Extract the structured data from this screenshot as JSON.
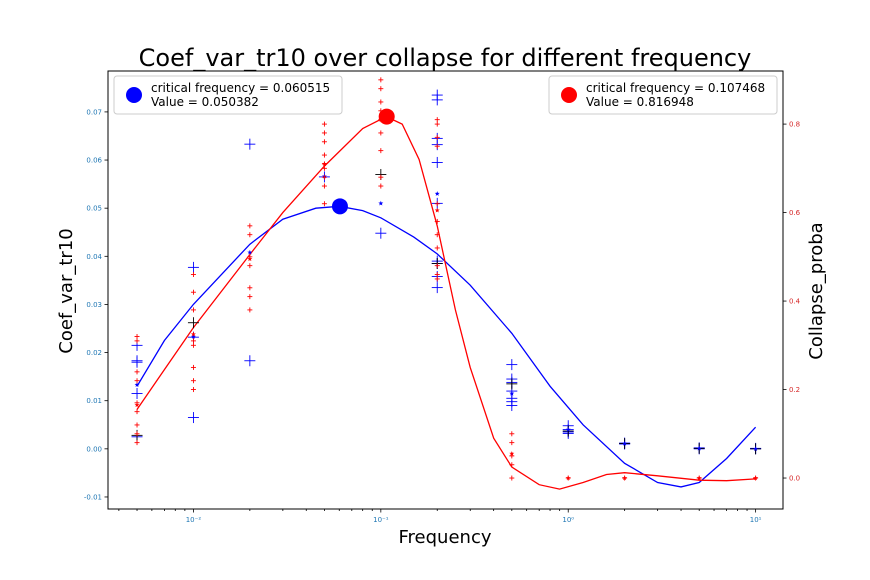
{
  "chart_data": {
    "type": "scatter",
    "title": "Coef_var_tr10 over collapse for different frequency",
    "xlabel": "Frequency",
    "ylabel_left": "Coef_var_tr10",
    "ylabel_right": "Collapse_proba",
    "x_scale": "log",
    "xlim": [
      0.0035,
      14
    ],
    "ylim_left": [
      -0.0125,
      0.0785
    ],
    "ylim_right": [
      -0.07,
      0.92
    ],
    "x_ticks": [
      {
        "value": 0.01,
        "label": "10⁻²"
      },
      {
        "value": 0.1,
        "label": "10⁻¹"
      },
      {
        "value": 1,
        "label": "10⁰"
      },
      {
        "value": 10,
        "label": "10¹"
      }
    ],
    "y_ticks_left": [
      "-0.01",
      "0.00",
      "0.01",
      "0.02",
      "0.03",
      "0.04",
      "0.05",
      "0.06",
      "0.07"
    ],
    "y_ticks_right": [
      "0.0",
      "0.2",
      "0.4",
      "0.6",
      "0.8"
    ],
    "colors": {
      "blue": "#0000ff",
      "red": "#ff0000",
      "black": "#000000"
    },
    "legends": [
      {
        "position": "upper-left",
        "color": "#0000ff",
        "line1": "critical frequency = 0.060515",
        "line2": "Value = 0.050382"
      },
      {
        "position": "upper-right",
        "color": "#ff0000",
        "line1": "critical frequency = 0.107468",
        "line2": "Value = 0.816948"
      }
    ],
    "critical_points": [
      {
        "axis": "left",
        "color": "#0000ff",
        "x": 0.060515,
        "y": 0.050382
      },
      {
        "axis": "right",
        "color": "#ff0000",
        "x": 0.107468,
        "y": 0.816948
      }
    ],
    "series": [
      {
        "axis": "left",
        "marker": "plus-large",
        "color": "#0000ff",
        "points": [
          [
            0.005,
            0.0215
          ],
          [
            0.005,
            0.0183
          ],
          [
            0.005,
            0.018
          ],
          [
            0.005,
            0.0115
          ],
          [
            0.005,
            0.0025
          ],
          [
            0.01,
            0.0377
          ],
          [
            0.01,
            0.0232
          ],
          [
            0.01,
            0.0065
          ],
          [
            0.02,
            0.0633
          ],
          [
            0.02,
            0.0183
          ],
          [
            0.05,
            0.0565
          ],
          [
            0.1,
            0.0448
          ],
          [
            0.2,
            0.0735
          ],
          [
            0.2,
            0.0725
          ],
          [
            0.2,
            0.0645
          ],
          [
            0.2,
            0.0632
          ],
          [
            0.2,
            0.0595
          ],
          [
            0.2,
            0.051
          ],
          [
            0.2,
            0.039
          ],
          [
            0.2,
            0.0385
          ],
          [
            0.2,
            0.0358
          ],
          [
            0.2,
            0.0335
          ],
          [
            0.5,
            0.0175
          ],
          [
            0.5,
            0.0145
          ],
          [
            0.5,
            0.0138
          ],
          [
            0.5,
            0.012
          ],
          [
            0.5,
            0.0105
          ],
          [
            0.5,
            0.0098
          ],
          [
            0.5,
            0.009
          ],
          [
            1,
            0.0048
          ],
          [
            1,
            0.004
          ],
          [
            1,
            0.0035
          ],
          [
            1,
            0.0032
          ],
          [
            2,
            0.0012
          ],
          [
            2,
            0.001
          ],
          [
            5,
            0.0002
          ],
          [
            5,
            0.0
          ],
          [
            10,
            0.0001
          ],
          [
            10,
            0.0
          ]
        ]
      },
      {
        "axis": "left",
        "marker": "plus-large",
        "color": "#000000",
        "points": [
          [
            0.005,
            0.0028
          ],
          [
            0.01,
            0.0262
          ],
          [
            0.1,
            0.057
          ],
          [
            0.2,
            0.0385
          ],
          [
            0.5,
            0.0135
          ],
          [
            1,
            0.0037
          ],
          [
            2,
            0.0011
          ],
          [
            5,
            0.0001
          ],
          [
            10,
            0.0
          ]
        ]
      },
      {
        "axis": "left",
        "marker": "star",
        "color": "#0000ff",
        "points": [
          [
            0.005,
            0.0133
          ],
          [
            0.01,
            0.0233
          ],
          [
            0.02,
            0.0408
          ],
          [
            0.05,
            0.0566
          ],
          [
            0.1,
            0.051
          ],
          [
            0.2,
            0.053
          ],
          [
            0.5,
            0.0115
          ],
          [
            1,
            0.004
          ],
          [
            2,
            0.0011
          ],
          [
            5,
            0.0001
          ],
          [
            10,
            0.0
          ]
        ]
      },
      {
        "axis": "right",
        "marker": "plus-small",
        "color": "#ff0000",
        "points": [
          [
            0.005,
            0.32
          ],
          [
            0.005,
            0.31
          ],
          [
            0.005,
            0.24
          ],
          [
            0.005,
            0.22
          ],
          [
            0.005,
            0.17
          ],
          [
            0.005,
            0.15
          ],
          [
            0.005,
            0.12
          ],
          [
            0.005,
            0.1
          ],
          [
            0.005,
            0.08
          ],
          [
            0.01,
            0.46
          ],
          [
            0.01,
            0.42
          ],
          [
            0.01,
            0.38
          ],
          [
            0.01,
            0.31
          ],
          [
            0.01,
            0.3
          ],
          [
            0.01,
            0.25
          ],
          [
            0.01,
            0.22
          ],
          [
            0.01,
            0.2
          ],
          [
            0.02,
            0.57
          ],
          [
            0.02,
            0.55
          ],
          [
            0.02,
            0.5
          ],
          [
            0.02,
            0.48
          ],
          [
            0.02,
            0.43
          ],
          [
            0.02,
            0.41
          ],
          [
            0.02,
            0.38
          ],
          [
            0.05,
            0.8
          ],
          [
            0.05,
            0.78
          ],
          [
            0.05,
            0.76
          ],
          [
            0.05,
            0.73
          ],
          [
            0.05,
            0.71
          ],
          [
            0.05,
            0.7
          ],
          [
            0.05,
            0.68
          ],
          [
            0.05,
            0.66
          ],
          [
            0.05,
            0.62
          ],
          [
            0.1,
            0.9
          ],
          [
            0.1,
            0.88
          ],
          [
            0.1,
            0.85
          ],
          [
            0.1,
            0.83
          ],
          [
            0.1,
            0.81
          ],
          [
            0.1,
            0.78
          ],
          [
            0.1,
            0.74
          ],
          [
            0.1,
            0.68
          ],
          [
            0.1,
            0.66
          ],
          [
            0.2,
            0.81
          ],
          [
            0.2,
            0.8
          ],
          [
            0.2,
            0.77
          ],
          [
            0.2,
            0.75
          ],
          [
            0.2,
            0.62
          ],
          [
            0.2,
            0.58
          ],
          [
            0.2,
            0.55
          ],
          [
            0.2,
            0.52
          ],
          [
            0.2,
            0.48
          ],
          [
            0.2,
            0.46
          ],
          [
            0.2,
            0.45
          ],
          [
            0.5,
            0.1
          ],
          [
            0.5,
            0.08
          ],
          [
            0.5,
            0.05
          ],
          [
            0.5,
            0.03
          ],
          [
            0.5,
            0.0
          ],
          [
            1,
            0.0
          ],
          [
            2,
            0.0
          ],
          [
            5,
            0.0
          ],
          [
            10,
            0.0
          ]
        ]
      },
      {
        "axis": "right",
        "marker": "star",
        "color": "#ff0000",
        "points": [
          [
            0.005,
            0.165
          ],
          [
            0.01,
            0.325
          ],
          [
            0.02,
            0.495
          ],
          [
            0.05,
            0.71
          ],
          [
            0.1,
            0.81
          ],
          [
            0.2,
            0.605
          ],
          [
            0.5,
            0.055
          ],
          [
            1,
            0.0
          ],
          [
            2,
            0.0
          ],
          [
            5,
            0.0
          ],
          [
            10,
            0.0
          ]
        ]
      }
    ],
    "fit_curves": [
      {
        "axis": "left",
        "color": "#0000ff",
        "points": [
          [
            0.005,
            0.013
          ],
          [
            0.007,
            0.0225
          ],
          [
            0.01,
            0.03
          ],
          [
            0.02,
            0.0425
          ],
          [
            0.03,
            0.0477
          ],
          [
            0.045,
            0.05
          ],
          [
            0.06,
            0.0504
          ],
          [
            0.08,
            0.0495
          ],
          [
            0.1,
            0.048
          ],
          [
            0.15,
            0.044
          ],
          [
            0.2,
            0.0405
          ],
          [
            0.3,
            0.034
          ],
          [
            0.5,
            0.024
          ],
          [
            0.8,
            0.013
          ],
          [
            1.2,
            0.005
          ],
          [
            2,
            -0.003
          ],
          [
            3,
            -0.007
          ],
          [
            4,
            -0.0079
          ],
          [
            5,
            -0.007
          ],
          [
            7,
            -0.002
          ],
          [
            10,
            0.0045
          ]
        ]
      },
      {
        "axis": "right",
        "color": "#ff0000",
        "points": [
          [
            0.005,
            0.155
          ],
          [
            0.007,
            0.245
          ],
          [
            0.01,
            0.34
          ],
          [
            0.02,
            0.505
          ],
          [
            0.03,
            0.6
          ],
          [
            0.05,
            0.705
          ],
          [
            0.08,
            0.79
          ],
          [
            0.107,
            0.817
          ],
          [
            0.13,
            0.8
          ],
          [
            0.16,
            0.72
          ],
          [
            0.2,
            0.57
          ],
          [
            0.25,
            0.38
          ],
          [
            0.3,
            0.25
          ],
          [
            0.4,
            0.09
          ],
          [
            0.5,
            0.025
          ],
          [
            0.7,
            -0.015
          ],
          [
            0.9,
            -0.025
          ],
          [
            1.2,
            -0.01
          ],
          [
            1.6,
            0.008
          ],
          [
            2,
            0.012
          ],
          [
            3,
            0.005
          ],
          [
            5,
            -0.005
          ],
          [
            7,
            -0.006
          ],
          [
            10,
            -0.002
          ]
        ]
      }
    ]
  }
}
